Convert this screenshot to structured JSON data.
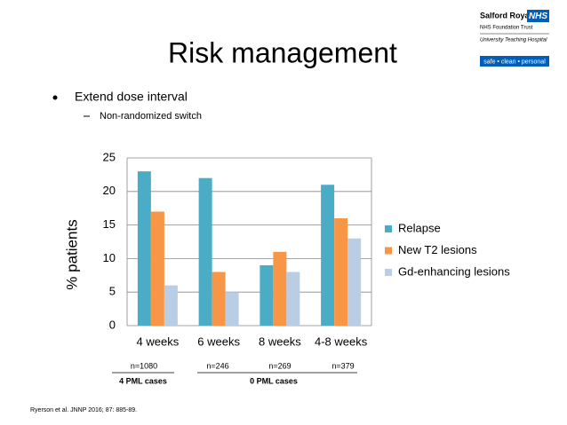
{
  "title": "Risk management",
  "bullets": {
    "main": "Extend dose interval",
    "sub": "Non-randomized switch"
  },
  "logo": {
    "name": "Salford Royal",
    "badge": "NHS",
    "trust": "NHS Foundation Trust",
    "tagline": "University Teaching Hospital",
    "motto": "safe • clean • personal"
  },
  "notes": {
    "counts": [
      "n=1080",
      "n=246",
      "n=269",
      "n=379"
    ],
    "pml": [
      "4 PML cases",
      "0 PML cases"
    ]
  },
  "reference": "Ryerson et al. JNNP 2016; 87: 885-89.",
  "chart_data": {
    "type": "bar",
    "y_label": "% patients",
    "categories": [
      "4 weeks",
      "6 weeks",
      "8 weeks",
      "4-8 weeks"
    ],
    "series": [
      {
        "name": "Relapse",
        "color": "#4bacc6",
        "values": [
          23,
          22,
          9,
          21
        ]
      },
      {
        "name": "New T2 lesions",
        "color": "#f79646",
        "values": [
          17,
          8,
          11,
          16
        ]
      },
      {
        "name": "Gd-enhancing lesions",
        "color": "#b9cde5",
        "values": [
          6,
          5,
          8,
          13
        ]
      }
    ],
    "ylim": [
      0,
      25
    ],
    "yticks": [
      0,
      5,
      10,
      15,
      20,
      25
    ],
    "grid": true,
    "legend": "right"
  }
}
